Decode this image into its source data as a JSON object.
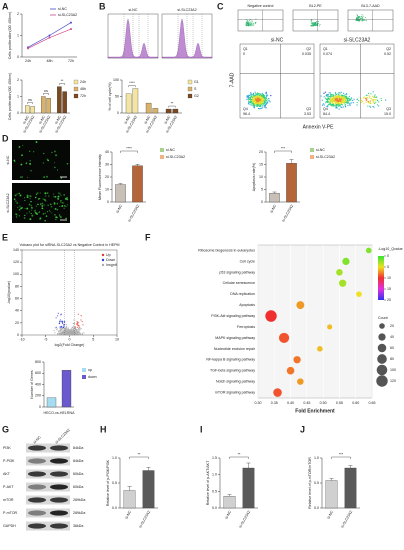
{
  "figure": {
    "A": {
      "label": "A",
      "line": {
        "categories": [
          "24h",
          "48h",
          "72h"
        ],
        "ylim": [
          0,
          2
        ],
        "yticks": [
          0,
          1,
          2
        ],
        "ylabel": "Cells proliferation(OD 450nm)",
        "series": [
          {
            "name": "si-NC",
            "color": "#4a4ad0",
            "values": [
              0.45,
              1.0,
              1.6
            ]
          },
          {
            "name": "si-SLC23A2",
            "color": "#d04a8a",
            "values": [
              0.4,
              0.9,
              1.3
            ]
          }
        ]
      },
      "bars": {
        "categories": [
          "si-NC",
          "si-SLC23A2"
        ],
        "ylim": [
          0,
          2
        ],
        "yticks": [
          0,
          1,
          2
        ],
        "ylabel": "Cells proliferation(OD 450nm)",
        "groups": [
          {
            "name": "24h",
            "color": "#f3e4a0",
            "values": [
              0.45,
              0.4
            ]
          },
          {
            "name": "48h",
            "color": "#d9b26a",
            "values": [
              1.0,
              0.9
            ]
          },
          {
            "name": "72h",
            "color": "#7a4a22",
            "values": [
              1.6,
              1.3
            ]
          }
        ],
        "sig": [
          "ns",
          "ns",
          "**"
        ]
      }
    },
    "B": {
      "label": "B",
      "histograms": [
        "si-NC",
        "si-SLC23A2"
      ],
      "bars": {
        "categories": [
          "si-NC",
          "si-SLC23A2"
        ],
        "ylim": [
          0,
          100
        ],
        "yticks": [
          0,
          50,
          100
        ],
        "ylabel": "% of cell cycle(%)",
        "groups": [
          {
            "name": "G1",
            "color": "#f3e4a0",
            "values": [
              58,
              74
            ]
          },
          {
            "name": "S",
            "color": "#d9b26a",
            "values": [
              30,
              14
            ]
          },
          {
            "name": "G2",
            "color": "#7a4a22",
            "values": [
              12,
              12
            ]
          }
        ],
        "sig": [
          "****",
          null,
          "**"
        ]
      }
    },
    "C": {
      "label": "C",
      "controls": [
        "Negative control",
        "BL2-PE",
        "BL3-7-AAD"
      ],
      "xlabel": "Annexin V-PE",
      "ylabel": "7-AAD",
      "plots": [
        {
          "title": "si-NC",
          "quadrants": [
            [
              "Q1",
              "0"
            ],
            [
              "Q2",
              "0.035"
            ],
            [
              "Q4",
              "96.4"
            ],
            [
              "Q3",
              "3.53"
            ]
          ]
        },
        {
          "title": "si-SLC23A2",
          "quadrants": [
            [
              "Q1",
              "0.074"
            ],
            [
              "Q2",
              "0.52"
            ],
            [
              "Q4",
              "84.4"
            ],
            [
              "Q3",
              "15.0"
            ]
          ]
        }
      ]
    },
    "D": {
      "label": "D",
      "images": [
        "si-NC",
        "si-SLC23A2"
      ],
      "mfi": {
        "categories": [
          "si-NC",
          "si-SLC23A2"
        ],
        "legend": [
          "si-NC",
          "si-SLC23A2"
        ],
        "legend_colors": [
          "#a9d18e",
          "#f4b183"
        ],
        "colors": [
          "#c8bfb6",
          "#b5653a"
        ],
        "values": [
          14,
          29
        ],
        "errors": [
          0.8,
          1.2
        ],
        "ylim": [
          0,
          40
        ],
        "yticks": [
          0,
          10,
          20,
          30,
          40
        ],
        "ylabel": "Mean Fluorescence Intensity",
        "sig": "****"
      },
      "apoptosis": {
        "categories": [
          "si-NC",
          "si-SLC23A2"
        ],
        "legend": [
          "si-NC",
          "si-SLC23A2"
        ],
        "legend_colors": [
          "#a9d18e",
          "#f4b183"
        ],
        "colors": [
          "#c8bfb6",
          "#b5653a"
        ],
        "values": [
          3.5,
          15.5
        ],
        "errors": [
          0.5,
          1.5
        ],
        "ylim": [
          0,
          20
        ],
        "yticks": [
          0,
          5,
          10,
          15,
          20
        ],
        "ylabel": "Apoptosis rate(%)",
        "sig": "***"
      }
    },
    "E": {
      "label": "E",
      "title": "Volcano plot for siRNA-SLC23A2 vs Negative Control in HEPM",
      "xlabel": "log2(Fold Change)",
      "ylabel": "-log10(pvalue)",
      "legend": [
        {
          "name": "Up",
          "color": "#e8372c"
        },
        {
          "name": "Down",
          "color": "#2a3cd6"
        },
        {
          "name": "Insgnif",
          "color": "#aaaaaa"
        }
      ],
      "xlim": [
        -10,
        10
      ],
      "xticks": [
        -10,
        -5,
        0,
        5,
        10
      ],
      "ylim": [
        0,
        140
      ],
      "yticks": [
        0,
        20,
        40,
        60,
        80,
        100,
        120,
        140
      ],
      "genes": {
        "legend": [
          "up",
          "down"
        ],
        "colors": [
          "#a6dcef",
          "#6a5acd"
        ],
        "values": [
          166,
          654
        ],
        "ylim": [
          0,
          800
        ],
        "yticks": [
          0,
          200,
          400,
          600,
          800
        ],
        "ylabel": "Number of Genes",
        "xlabel": "HECO-vs-HELRNA"
      }
    },
    "F": {
      "label": "F",
      "xlabel": "Fold Enrichment",
      "xlim": [
        0.3,
        0.65
      ],
      "xticks": [
        {
          "value": 0.3,
          "label": "0.30"
        },
        0.35,
        {
          "value": 0.4,
          "label": "0.40"
        },
        0.45,
        {
          "value": 0.5,
          "label": "0.50"
        },
        0.55,
        {
          "value": 0.6,
          "label": "0.60"
        },
        0.65
      ],
      "color_title": "-Log10_Qvalue",
      "color_ticks": [
        0,
        5,
        10,
        15,
        20
      ],
      "colorscale": [
        "#33e633",
        "#f0e020",
        "#f03030",
        "#e030e0",
        "#3030f0"
      ],
      "size_title": "Count",
      "size_ticks": [
        20,
        40,
        60,
        80,
        100,
        120
      ],
      "points": [
        {
          "term": "Ribosome biogenesis in eukaryotes",
          "fold": 0.64,
          "qvalue": 2,
          "count": 20
        },
        {
          "term": "Cell cycle",
          "fold": 0.57,
          "qvalue": 2,
          "count": 40
        },
        {
          "term": "p53 signaling pathway",
          "fold": 0.55,
          "qvalue": 3,
          "count": 30
        },
        {
          "term": "Cellular senescence",
          "fold": 0.56,
          "qvalue": 3,
          "count": 40
        },
        {
          "term": "DNA replication",
          "fold": 0.61,
          "qvalue": 5,
          "count": 20
        },
        {
          "term": "Apoptosis",
          "fold": 0.43,
          "qvalue": 7,
          "count": 50
        },
        {
          "term": "PI3K-Akt signaling pathway",
          "fold": 0.34,
          "qvalue": 10,
          "count": 120
        },
        {
          "term": "Ferroptosis",
          "fold": 0.52,
          "qvalue": 6,
          "count": 15
        },
        {
          "term": "MAPK signaling pathway",
          "fold": 0.38,
          "qvalue": 9,
          "count": 90
        },
        {
          "term": "Nucleotide excision repair",
          "fold": 0.49,
          "qvalue": 6,
          "count": 20
        },
        {
          "term": "NF-kappa B signaling pathway",
          "fold": 0.42,
          "qvalue": 8,
          "count": 40
        },
        {
          "term": "TGF-beta signaling pathway",
          "fold": 0.4,
          "qvalue": 8,
          "count": 45
        },
        {
          "term": "Notch signaling pathway",
          "fold": 0.43,
          "qvalue": 7,
          "count": 30
        },
        {
          "term": "mTOR signaling pathway",
          "fold": 0.36,
          "qvalue": 9,
          "count": 60
        }
      ]
    },
    "G": {
      "label": "G",
      "columns": [
        "si-NC",
        "si-SLC23A2"
      ],
      "rows": [
        {
          "name": "PI3K",
          "size": "84kDa"
        },
        {
          "name": "P-PI3K",
          "size": "84kDa"
        },
        {
          "name": "AKT",
          "size": "60kDa"
        },
        {
          "name": "P-AKT",
          "size": "60kDa"
        },
        {
          "name": "mTOR",
          "size": "289kDa"
        },
        {
          "name": "P-mTOR",
          "size": "289kDa"
        },
        {
          "name": "GAPDH",
          "size": "36kDa"
        }
      ]
    },
    "H": {
      "label": "H",
      "categories": [
        "si-NC",
        "si-SLC23A2"
      ],
      "colors": [
        "#d0d0d0",
        "#5a5a5a"
      ],
      "values": [
        0.35,
        0.75
      ],
      "errors": [
        0.08,
        0.06
      ],
      "ylim": [
        0,
        1
      ],
      "yticks": [
        {
          "value": 0,
          "label": "0.0"
        },
        0.5,
        {
          "value": 1,
          "label": "1.0"
        }
      ],
      "ylabel": "Relative level of p-PI3K/PI3K",
      "sig": "**"
    },
    "I": {
      "label": "I",
      "categories": [
        "si-NC",
        "si-SLC23A2"
      ],
      "colors": [
        "#d0d0d0",
        "#5a5a5a"
      ],
      "values": [
        0.35,
        1.2
      ],
      "errors": [
        0.05,
        0.15
      ],
      "ylim": [
        0,
        1.5
      ],
      "yticks": [
        {
          "value": 0,
          "label": "0.0"
        },
        0.5,
        {
          "value": 1,
          "label": "1.0"
        },
        1.5
      ],
      "ylabel": "Relative level of p-AKT/AKT",
      "sig": "**"
    },
    "J": {
      "label": "J",
      "categories": [
        "si-NC",
        "si-SLC23A2"
      ],
      "colors": [
        "#d0d0d0",
        "#5a5a5a"
      ],
      "values": [
        0.55,
        0.8
      ],
      "errors": [
        0.04,
        0.05
      ],
      "ylim": [
        0,
        1
      ],
      "yticks": [
        {
          "value": 0,
          "label": "0.0"
        },
        0.5,
        {
          "value": 1,
          "label": "1.0"
        }
      ],
      "ylabel": "Relative level of p-mTOR/mTOR",
      "sig": "***"
    }
  }
}
